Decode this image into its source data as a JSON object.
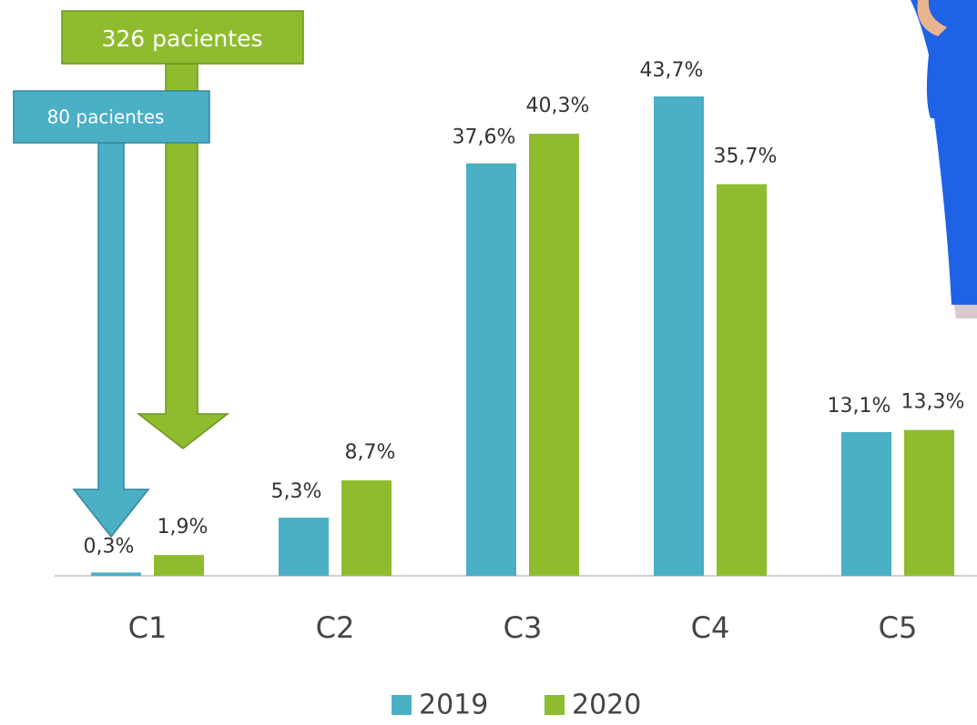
{
  "chart_data": {
    "type": "bar",
    "categories": [
      "C1",
      "C2",
      "C3",
      "C4",
      "C5"
    ],
    "series": [
      {
        "name": "2019",
        "color": "#4bafc6",
        "values": [
          0.3,
          5.3,
          37.6,
          43.7,
          13.1
        ],
        "value_labels": [
          "0,3%",
          "5,3%",
          "37,6%",
          "43,7%",
          "13,1%"
        ]
      },
      {
        "name": "2020",
        "color": "#8fbc2e",
        "values": [
          1.9,
          8.7,
          40.3,
          35.7,
          13.3
        ],
        "value_labels": [
          "1,9%",
          "8,7%",
          "40,3%",
          "35,7%",
          "13,3%"
        ]
      }
    ],
    "annotations": [
      "326 pacientes",
      "80 pacientes"
    ],
    "legend": "bottom"
  }
}
